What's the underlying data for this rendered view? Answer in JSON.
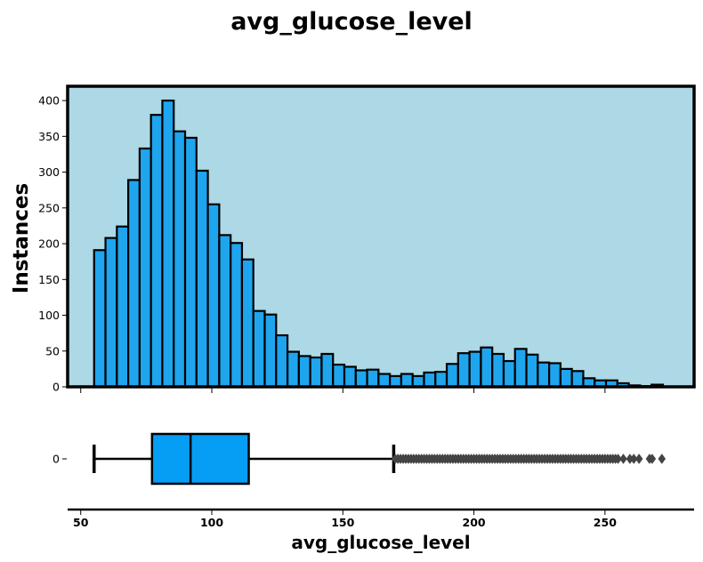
{
  "chart_data": {
    "type": "histogram",
    "title": "avg_glucose_level",
    "xlabel": "avg_glucose_level",
    "ylabel": "Instances",
    "colors": {
      "plot_background": "#add8e6",
      "bar_fill": "#1ea5ee",
      "box_fill": "#069ef4",
      "outlier": "#444444",
      "edge": "#000000"
    },
    "x_ticks": [
      50,
      100,
      150,
      200,
      250
    ],
    "x_range": [
      45,
      284
    ],
    "histogram": {
      "ylim": [
        0,
        420
      ],
      "y_ticks": [
        0,
        50,
        100,
        150,
        200,
        250,
        300,
        350,
        400
      ],
      "bin_start": 55.1,
      "bin_width": 4.34,
      "counts": [
        191,
        208,
        224,
        289,
        333,
        380,
        400,
        357,
        348,
        302,
        255,
        212,
        201,
        178,
        106,
        101,
        72,
        49,
        43,
        41,
        46,
        31,
        28,
        23,
        24,
        18,
        15,
        18,
        15,
        20,
        21,
        32,
        47,
        49,
        55,
        46,
        36,
        53,
        45,
        34,
        33,
        25,
        22,
        12,
        9,
        9,
        5,
        2,
        1,
        3
      ]
    },
    "boxplot": {
      "category_label": "0",
      "min": 55.1,
      "q1": 77.2,
      "median": 91.9,
      "q3": 114.1,
      "whisker_high": 169.4,
      "outliers": [
        170,
        171,
        172,
        173,
        174,
        175,
        176,
        177,
        178,
        179,
        180,
        181,
        182,
        183,
        184,
        185,
        186,
        187,
        188,
        189,
        190,
        191,
        192,
        193,
        194,
        195,
        196,
        197,
        198,
        199,
        200,
        201,
        202,
        203,
        204,
        205,
        206,
        207,
        208,
        209,
        210,
        211,
        212,
        213,
        214,
        215,
        216,
        217,
        218,
        219,
        220,
        221,
        222,
        223,
        224,
        225,
        226,
        227,
        228,
        229,
        230,
        231,
        232,
        233,
        234,
        235,
        236,
        237,
        238,
        239,
        240,
        241,
        242,
        243,
        244,
        245,
        246,
        247,
        248,
        249,
        250,
        251,
        252,
        253,
        254,
        255,
        257,
        259.5,
        261,
        263,
        267,
        268,
        271.7
      ]
    }
  }
}
